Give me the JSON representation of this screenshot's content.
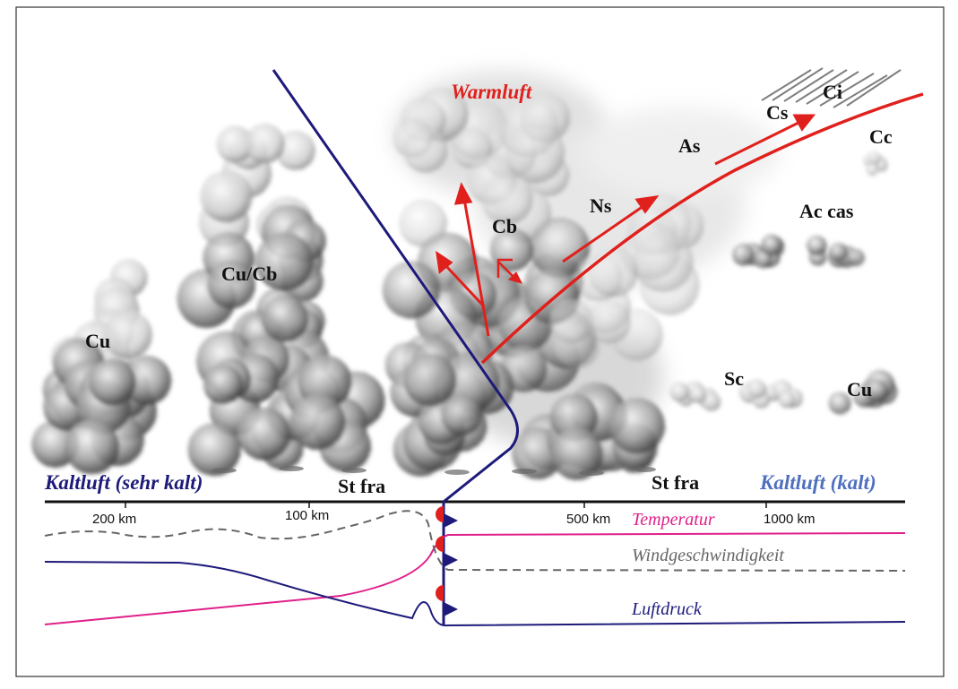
{
  "warm_air": "Warmluft",
  "clouds": [
    "Ci",
    "Cs",
    "Cc",
    "As",
    "Ns",
    "Cb",
    "Ac cas",
    "Cu/Cb",
    "Cu",
    "Sc",
    "Cu",
    "St fra",
    "St fra"
  ],
  "air_masses": [
    "Kaltluft (sehr kalt)",
    "Kaltluft (kalt)"
  ],
  "distances": [
    "200 km",
    "100 km",
    "500 km",
    "1000 km"
  ],
  "curves": [
    "Temperatur",
    "Windgeschwindigkeit",
    "Luftdruck"
  ]
}
